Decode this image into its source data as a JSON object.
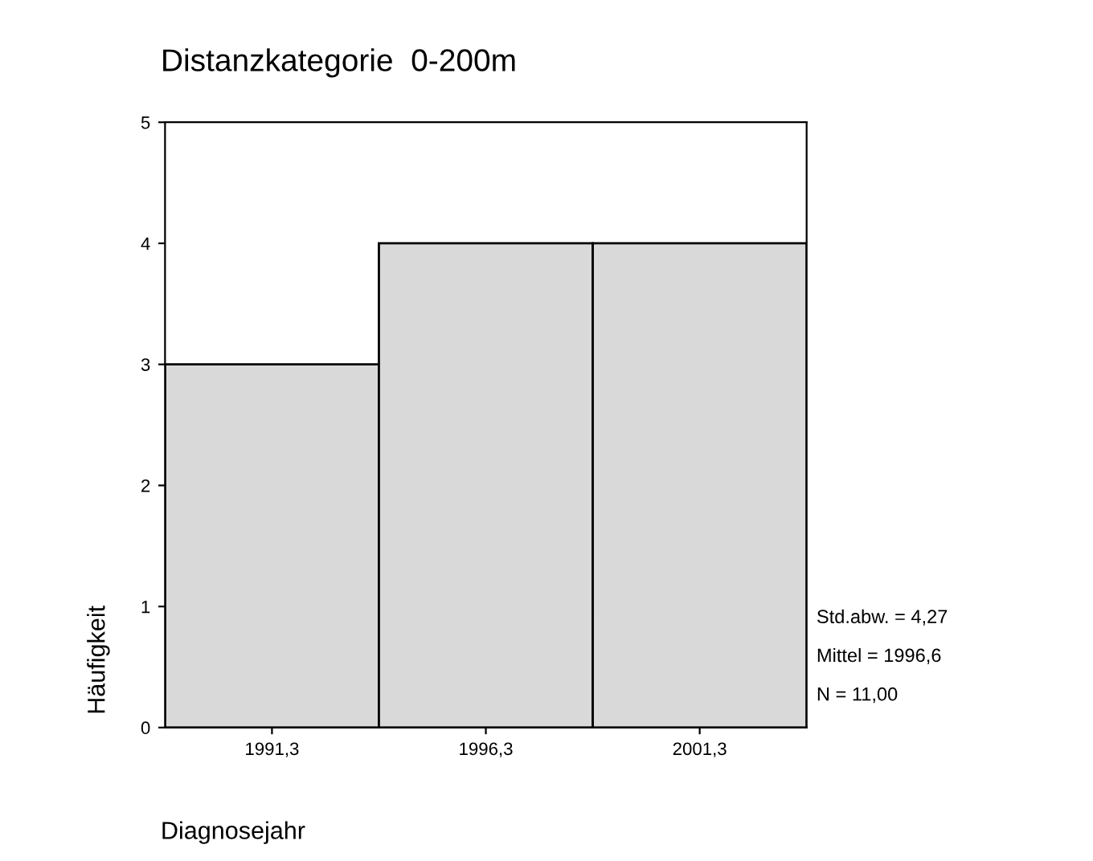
{
  "chart_data": {
    "type": "histogram",
    "title": "Distanzkategorie  0-200m",
    "xlabel": "Diagnosejahr",
    "ylabel": "Häufigkeit",
    "bins": [
      1988.8,
      1993.8,
      1998.8,
      2003.8
    ],
    "values": [
      3,
      4,
      4
    ],
    "color": "#d9d9d9",
    "xlim": [
      1988.8,
      2003.8
    ],
    "xticks": [
      {
        "value": 1991.3,
        "label": "1991,3"
      },
      {
        "value": 1996.3,
        "label": "1996,3"
      },
      {
        "value": 2001.3,
        "label": "2001,3"
      }
    ],
    "ylim": [
      0,
      5
    ],
    "yticks": [
      0,
      1,
      2,
      3,
      4,
      5
    ],
    "grid": false,
    "annotations": [
      "Std.abw. = 4,27",
      "Mittel = 1996,6",
      "N = 11,00"
    ]
  }
}
